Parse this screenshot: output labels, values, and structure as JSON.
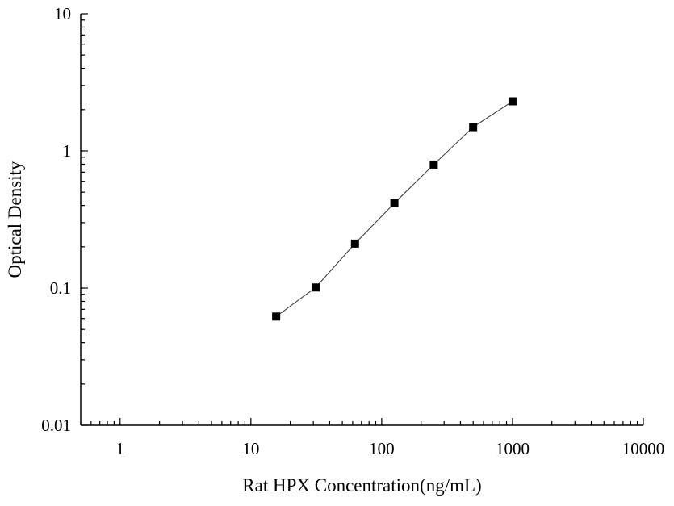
{
  "chart_data": {
    "type": "scatter",
    "title": "",
    "xlabel": "Rat HPX Concentration(ng/mL)",
    "ylabel": "Optical Density",
    "x_scale": "log",
    "y_scale": "log",
    "xlim": [
      0.5,
      10000
    ],
    "ylim": [
      0.01,
      10
    ],
    "x_ticks": [
      1,
      10,
      100,
      1000,
      10000
    ],
    "x_tick_labels": [
      "1",
      "10",
      "100",
      "1000",
      "10000"
    ],
    "y_ticks": [
      0.01,
      0.1,
      1,
      10
    ],
    "y_tick_labels": [
      "0.01",
      "0.1",
      "1",
      "10"
    ],
    "grid": false,
    "legend": "none",
    "line_connects_points": true,
    "series": [
      {
        "marker": "square",
        "color": "#000000",
        "points": [
          {
            "x": 15.6,
            "y": 0.062
          },
          {
            "x": 31.25,
            "y": 0.101
          },
          {
            "x": 62.5,
            "y": 0.211
          },
          {
            "x": 125,
            "y": 0.416
          },
          {
            "x": 250,
            "y": 0.795
          },
          {
            "x": 500,
            "y": 1.49
          },
          {
            "x": 1000,
            "y": 2.3
          }
        ]
      }
    ]
  }
}
